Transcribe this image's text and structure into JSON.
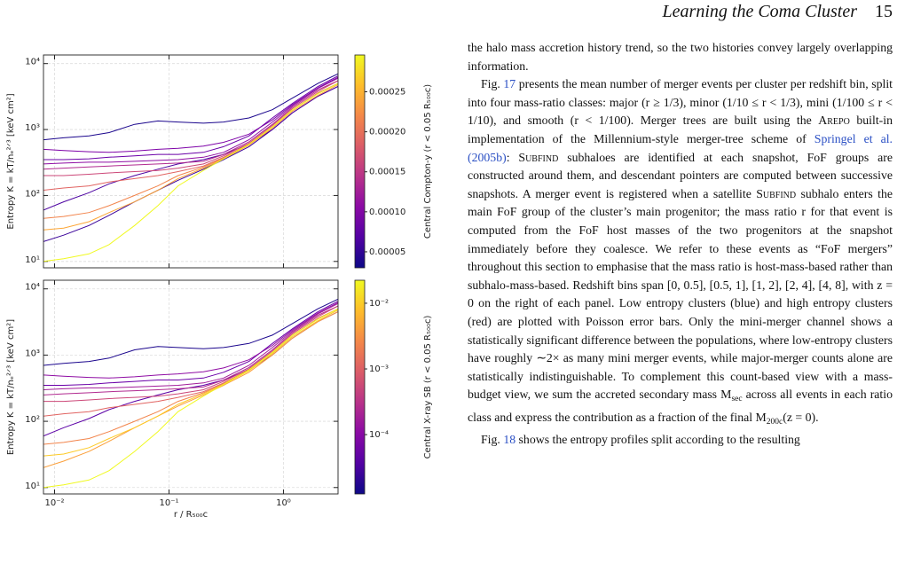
{
  "header": {
    "title": "Learning the Coma Cluster",
    "page": "15"
  },
  "chart_data": [
    {
      "type": "line",
      "xscale": "log",
      "yscale": "log",
      "grid": true,
      "show_xticklabels": false,
      "ylabel": "Entropy K = kT/nₑ²ᐟ³ [keV cm²]",
      "x": [
        0.008,
        0.012,
        0.02,
        0.03,
        0.05,
        0.08,
        0.12,
        0.2,
        0.3,
        0.5,
        0.8,
        1.2,
        2,
        3
      ],
      "xlim": [
        0.008,
        3
      ],
      "ylim": [
        8,
        13500
      ],
      "xticks": [
        {
          "value": 0.01,
          "label": "10⁻²"
        },
        {
          "value": 0.1,
          "label": "10⁻¹"
        },
        {
          "value": 1,
          "label": "10⁰"
        }
      ],
      "yticks": [
        {
          "value": 10,
          "label": "10¹"
        },
        {
          "value": 100,
          "label": "10²"
        },
        {
          "value": 1000,
          "label": "10³"
        },
        {
          "value": 10000,
          "label": "10⁴"
        }
      ],
      "colorbar": {
        "label": "Central Compton-y (r < 0.05 R₅₀₀c)",
        "scale": "linear",
        "lim": [
          3e-05,
          0.000296
        ],
        "ticks": [
          5e-05,
          {
            "value": 0.0001,
            "label": "0.00010"
          },
          0.00015,
          {
            "value": 0.0002,
            "label": "0.00020"
          },
          0.00025
        ],
        "colors": [
          "#0d0887",
          "#5302a3",
          "#8b0aa5",
          "#b83289",
          "#db5c68",
          "#f48849",
          "#febd2a",
          "#f0f921"
        ]
      },
      "series": [
        {
          "color": "#1b068d",
          "values": [
            700,
            750,
            800,
            900,
            1200,
            1350,
            1300,
            1250,
            1300,
            1500,
            2000,
            3000,
            5000,
            7000
          ]
        },
        {
          "color": "#3b049a",
          "values": [
            20,
            25,
            35,
            50,
            80,
            120,
            170,
            250,
            350,
            550,
            1000,
            1800,
            3200,
            4500
          ]
        },
        {
          "color": "#4c02a1",
          "values": [
            60,
            80,
            110,
            150,
            200,
            250,
            300,
            350,
            420,
            600,
            1000,
            1800,
            3200,
            4500
          ]
        },
        {
          "color": "#6a00a8",
          "values": [
            350,
            350,
            360,
            380,
            400,
            420,
            420,
            450,
            550,
            800,
            1500,
            2500,
            4500,
            6500
          ]
        },
        {
          "color": "#7e03a8",
          "values": [
            500,
            480,
            460,
            450,
            470,
            500,
            520,
            560,
            640,
            850,
            1400,
            2400,
            4300,
            6200
          ]
        },
        {
          "color": "#8f0da4",
          "values": [
            300,
            310,
            320,
            320,
            330,
            340,
            350,
            380,
            450,
            700,
            1300,
            2300,
            4200,
            6000
          ]
        },
        {
          "color": "#b12a90",
          "values": [
            250,
            260,
            270,
            280,
            290,
            300,
            310,
            330,
            420,
            650,
            1200,
            2200,
            4000,
            5500
          ]
        },
        {
          "color": "#cc4778",
          "values": [
            200,
            200,
            210,
            220,
            230,
            240,
            260,
            300,
            400,
            620,
            1150,
            2100,
            3800,
            5500
          ]
        },
        {
          "color": "#e16462",
          "values": [
            120,
            130,
            140,
            160,
            180,
            200,
            230,
            280,
            380,
            600,
            1100,
            2000,
            3600,
            5000
          ]
        },
        {
          "color": "#f2844b",
          "values": [
            45,
            48,
            55,
            70,
            100,
            140,
            200,
            270,
            370,
            600,
            1100,
            2000,
            3500,
            5000
          ]
        },
        {
          "color": "#fca636",
          "values": [
            30,
            32,
            40,
            55,
            80,
            120,
            180,
            260,
            360,
            580,
            1050,
            1900,
            3300,
            4800
          ]
        },
        {
          "color": "#f0f921",
          "values": [
            10,
            11,
            13,
            18,
            35,
            70,
            140,
            240,
            360,
            600,
            1100,
            2000,
            3500,
            5000
          ]
        }
      ]
    },
    {
      "type": "line",
      "xscale": "log",
      "yscale": "log",
      "grid": true,
      "show_xticklabels": true,
      "ylabel": "Entropy K = kT/nₑ²ᐟ³ [keV cm²]",
      "xlabel": "r / R₅₀₀c",
      "x": [
        0.008,
        0.012,
        0.02,
        0.03,
        0.05,
        0.08,
        0.12,
        0.2,
        0.3,
        0.5,
        0.8,
        1.2,
        2,
        3
      ],
      "xlim": [
        0.008,
        3
      ],
      "ylim": [
        8,
        13500
      ],
      "xticks": [
        {
          "value": 0.01,
          "label": "10⁻²"
        },
        {
          "value": 0.1,
          "label": "10⁻¹"
        },
        {
          "value": 1,
          "label": "10⁰"
        }
      ],
      "yticks": [
        {
          "value": 10,
          "label": "10¹"
        },
        {
          "value": 100,
          "label": "10²"
        },
        {
          "value": 1000,
          "label": "10³"
        },
        {
          "value": 10000,
          "label": "10⁴"
        }
      ],
      "colorbar": {
        "label": "Central X-ray SB (r < 0.05 R₅₀₀c)",
        "scale": "log",
        "lim": [
          1.25e-05,
          0.0224
        ],
        "ticks": [
          {
            "value": 0.0001,
            "label": "10⁻⁴"
          },
          {
            "value": 0.001,
            "label": "10⁻³"
          },
          {
            "value": 0.01,
            "label": "10⁻²"
          }
        ],
        "colors": [
          "#0d0887",
          "#5302a3",
          "#8b0aa5",
          "#b83289",
          "#db5c68",
          "#f48849",
          "#febd2a",
          "#f0f921"
        ]
      },
      "series": [
        {
          "color": "#1b068d",
          "values": [
            700,
            750,
            800,
            900,
            1200,
            1350,
            1300,
            1250,
            1300,
            1500,
            2000,
            3000,
            5000,
            7000
          ]
        },
        {
          "color": "#5c01a6",
          "values": [
            60,
            80,
            110,
            150,
            200,
            250,
            300,
            350,
            420,
            600,
            1000,
            1800,
            3200,
            4500
          ]
        },
        {
          "color": "#6a00a8",
          "values": [
            350,
            350,
            360,
            380,
            400,
            420,
            420,
            450,
            550,
            800,
            1500,
            2500,
            4500,
            6500
          ]
        },
        {
          "color": "#8f0da4",
          "values": [
            500,
            480,
            460,
            450,
            470,
            500,
            520,
            560,
            640,
            850,
            1400,
            2400,
            4300,
            6200
          ]
        },
        {
          "color": "#a21d9a",
          "values": [
            300,
            310,
            320,
            320,
            330,
            340,
            350,
            380,
            450,
            700,
            1300,
            2300,
            4200,
            6000
          ]
        },
        {
          "color": "#b12a90",
          "values": [
            250,
            260,
            270,
            280,
            290,
            300,
            310,
            330,
            420,
            650,
            1200,
            2200,
            4000,
            5500
          ]
        },
        {
          "color": "#cc4778",
          "values": [
            200,
            200,
            210,
            220,
            230,
            240,
            260,
            300,
            400,
            620,
            1150,
            2100,
            3800,
            5500
          ]
        },
        {
          "color": "#e16462",
          "values": [
            120,
            130,
            140,
            160,
            180,
            200,
            230,
            280,
            380,
            600,
            1100,
            2000,
            3600,
            5000
          ]
        },
        {
          "color": "#f2844b",
          "values": [
            45,
            48,
            55,
            70,
            100,
            140,
            200,
            270,
            370,
            600,
            1100,
            2000,
            3500,
            5000
          ]
        },
        {
          "color": "#fb9f3a",
          "values": [
            20,
            25,
            35,
            50,
            80,
            120,
            170,
            250,
            350,
            550,
            1000,
            1800,
            3200,
            4500
          ]
        },
        {
          "color": "#fdca26",
          "values": [
            30,
            32,
            40,
            55,
            80,
            120,
            180,
            260,
            360,
            580,
            1050,
            1900,
            3300,
            4800
          ]
        },
        {
          "color": "#f0f921",
          "values": [
            10,
            11,
            13,
            18,
            35,
            70,
            140,
            240,
            360,
            600,
            1100,
            2000,
            3500,
            5000
          ]
        }
      ]
    }
  ],
  "body": {
    "paragraphs": [
      [
        "the halo mass accretion history trend, so the two histories convey largely overlapping information."
      ],
      [
        "Fig. ",
        {
          "text": "17",
          "style": "link"
        },
        " presents the mean number of merger events per cluster per redshift bin, split into four mass-ratio classes: major (r ≥ 1/3), minor (1/10 ≤ r < 1/3), mini (1/100 ≤ r < 1/10), and smooth (r < 1/100). Merger trees are built using the ",
        {
          "text": "Arepo",
          "style": "sc"
        },
        " built-in implementation of the Millennium-style merger-tree scheme of ",
        {
          "text": "Springel et al. (2005b)",
          "style": "link"
        },
        ": ",
        {
          "text": "Subfind",
          "style": "sc"
        },
        " subhaloes are identified at each snapshot, FoF groups are constructed around them, and descendant pointers are computed between successive snapshots. A merger event is registered when a satellite ",
        {
          "text": "Subfind",
          "style": "sc"
        },
        " subhalo enters the main FoF group of the cluster’s main progenitor; the mass ratio r for that event is computed from the FoF host masses of the two progenitors at the snapshot immediately before they coalesce. We refer to these events as “FoF mergers” throughout this section to emphasise that the mass ratio is host-mass-based rather than subhalo-mass-based. Redshift bins span [0, 0.5], [0.5, 1], [1, 2], [2, 4], [4, 8], with z = 0 on the right of each panel. Low entropy clusters (blue) and high entropy clusters (red) are plotted with Poisson error bars. Only the mini-merger channel shows a statistically significant difference between the populations, where low-entropy clusters have roughly ∼2× as many mini merger events, while major-merger counts alone are statistically indistinguishable. To complement this count-based view with a mass-budget view, we sum the accreted secondary mass M",
        {
          "text": "sec",
          "style": "sub"
        },
        " across all events in each ratio class and express the contribution as a fraction of the final M",
        {
          "text": "200c",
          "style": "sub"
        },
        "(z = 0)."
      ],
      [
        "Fig. ",
        {
          "text": "18",
          "style": "link"
        },
        " shows the entropy profiles split according to the resulting"
      ]
    ]
  }
}
